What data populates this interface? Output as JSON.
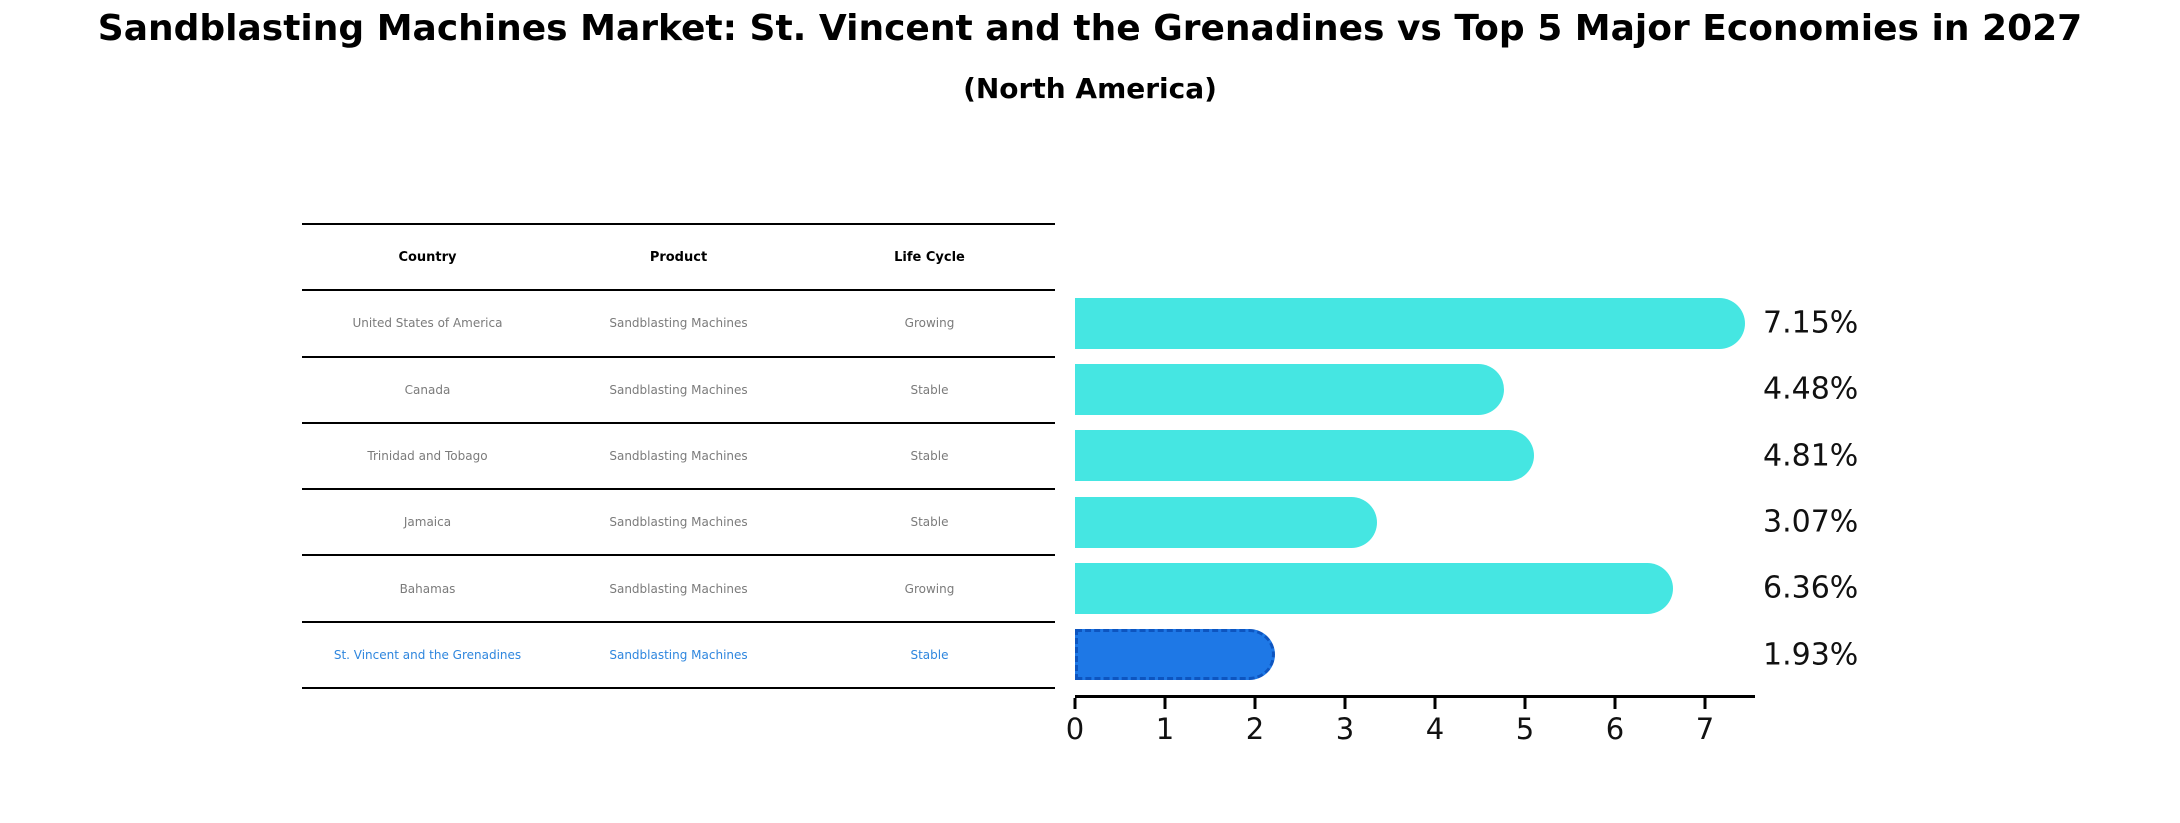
{
  "title": "Sandblasting Machines Market: St. Vincent and the Grenadines vs Top 5 Major Economies in 2027",
  "subtitle": "(North America)",
  "table": {
    "headers": [
      "Country",
      "Product",
      "Life Cycle"
    ],
    "rows": [
      {
        "country": "United States of America",
        "product": "Sandblasting Machines",
        "life_cycle": "Growing"
      },
      {
        "country": "Canada",
        "product": "Sandblasting Machines",
        "life_cycle": "Stable"
      },
      {
        "country": "Trinidad and Tobago",
        "product": "Sandblasting Machines",
        "life_cycle": "Stable"
      },
      {
        "country": "Jamaica",
        "product": "Sandblasting Machines",
        "life_cycle": "Stable"
      },
      {
        "country": "Bahamas",
        "product": "Sandblasting Machines",
        "life_cycle": "Growing"
      },
      {
        "country": "St. Vincent and the Grenadines",
        "product": "Sandblasting Machines",
        "life_cycle": "Stable"
      }
    ],
    "highlight_row_index": 5
  },
  "chart_data": {
    "type": "bar",
    "orientation": "horizontal",
    "categories": [
      "United States of America",
      "Canada",
      "Trinidad and Tobago",
      "Jamaica",
      "Bahamas",
      "St. Vincent and the Grenadines"
    ],
    "values": [
      7.15,
      4.48,
      4.81,
      3.07,
      6.36,
      1.93
    ],
    "value_labels": [
      "7.15%",
      "4.48%",
      "4.81%",
      "3.07%",
      "6.36%",
      "1.93%"
    ],
    "x_ticks": [
      "0",
      "1",
      "2",
      "3",
      "4",
      "5",
      "6",
      "7"
    ],
    "xlim": [
      0,
      7.55
    ],
    "grid": false,
    "legend": false,
    "title": "Sandblasting Machines Market: St. Vincent and the Grenadines vs Top 5 Major Economies in 2027 (North America)",
    "xlabel": "",
    "ylabel": "",
    "bar_color": "#45e6e2",
    "highlight_bar_color": "#1e78e6",
    "highlight_index": 5
  },
  "colors": {
    "background": "#ffffff",
    "bar": "#45e6e2",
    "highlight_bar": "#1e78e6",
    "highlight_text": "#2e86de",
    "table_text": "#7b7b7b",
    "header_text": "#000000",
    "axis": "#000000"
  }
}
